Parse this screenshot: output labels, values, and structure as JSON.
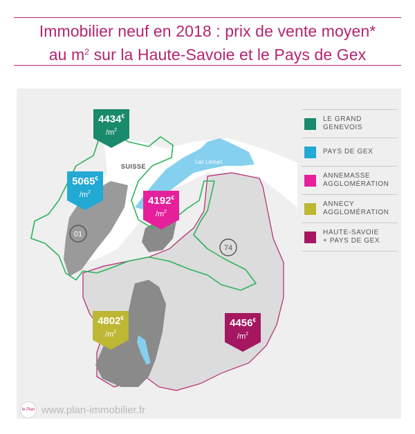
{
  "title": {
    "line1": "Immobilier neuf en 2018 : prix de vente moyen*",
    "line2_prefix": "au m",
    "line2_sup": "2",
    "line2_suffix": " sur la Haute-Savoie et le Pays de Gex"
  },
  "map": {
    "labels": {
      "suisse": "SUISSE",
      "lake": "Lac Léman",
      "dept_01": "01",
      "dept_74": "74"
    },
    "markers": [
      {
        "id": "grand-genevois",
        "price": "4434",
        "currency": "€",
        "unit": "/m",
        "unit_sup": "2",
        "color": "#1a8a6c"
      },
      {
        "id": "pays-de-gex",
        "price": "5065",
        "currency": "€",
        "unit": "/m",
        "unit_sup": "2",
        "color": "#22a9d4"
      },
      {
        "id": "annemasse",
        "price": "4192",
        "currency": "€",
        "unit": "/m",
        "unit_sup": "2",
        "color": "#e6209a"
      },
      {
        "id": "annecy",
        "price": "4802",
        "currency": "€",
        "unit": "/m",
        "unit_sup": "2",
        "color": "#bdb733"
      },
      {
        "id": "haute-savoie",
        "price": "4456",
        "currency": "€",
        "unit": "/m",
        "unit_sup": "2",
        "color": "#a51761"
      }
    ],
    "colors": {
      "green_border": "#2bb35a",
      "lake": "#85d0ee",
      "territory": "#dcdcdc",
      "dark_territory": "#8a8a8a",
      "dept_border": "#b3246f"
    }
  },
  "legend": [
    {
      "label": "LE GRAND\nGENEVOIS",
      "color": "#1a8a6c"
    },
    {
      "label": "PAYS DE GEX",
      "color": "#22a9d4"
    },
    {
      "label": "ANNEMASSE\nAGGLOMÉRATION",
      "color": "#e6209a"
    },
    {
      "label": "ANNECY\nAGGLOMÉRATION",
      "color": "#bdb733"
    },
    {
      "label": "HAUTE-SAVOIE\n+ PAYS DE GEX",
      "color": "#a51761"
    }
  ],
  "footer": {
    "url": "www.plan-immobilier.fr",
    "logo_text": "le Plan"
  }
}
